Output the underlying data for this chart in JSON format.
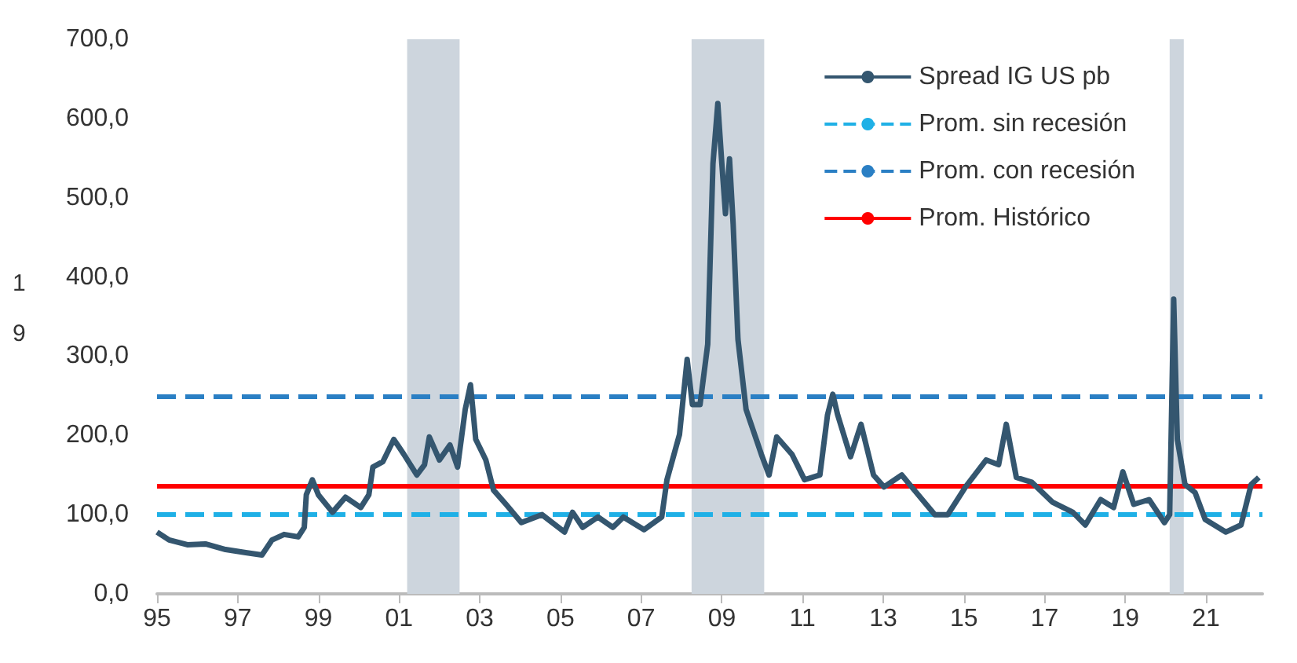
{
  "chart_data": {
    "type": "line",
    "x": [
      1995.0,
      1995.3,
      1995.75,
      1996.2,
      1996.7,
      1997.2,
      1997.6,
      1997.85,
      1998.15,
      1998.5,
      1998.65,
      1998.7,
      1998.85,
      1999.0,
      1999.35,
      1999.67,
      2000.05,
      2000.25,
      2000.35,
      2000.6,
      2000.87,
      2001.12,
      2001.44,
      2001.63,
      2001.75,
      2002.0,
      2002.26,
      2002.45,
      2002.64,
      2002.77,
      2002.9,
      2003.15,
      2003.34,
      2003.65,
      2004.03,
      2004.54,
      2005.1,
      2005.3,
      2005.55,
      2005.93,
      2006.3,
      2006.56,
      2007.07,
      2007.51,
      2007.64,
      2007.95,
      2008.14,
      2008.27,
      2008.46,
      2008.65,
      2008.78,
      2008.9,
      2009.0,
      2009.09,
      2009.19,
      2009.28,
      2009.4,
      2009.6,
      2009.98,
      2010.17,
      2010.36,
      2010.74,
      2011.05,
      2011.43,
      2011.62,
      2011.75,
      2011.87,
      2012.19,
      2012.45,
      2012.76,
      2013.02,
      2013.46,
      2013.77,
      2014.28,
      2014.6,
      2015.04,
      2015.55,
      2015.86,
      2016.05,
      2016.3,
      2016.68,
      2017.19,
      2017.7,
      2018.01,
      2018.39,
      2018.71,
      2018.94,
      2019.21,
      2019.59,
      2019.97,
      2020.1,
      2020.2,
      2020.29,
      2020.48,
      2020.73,
      2020.98,
      2021.49,
      2021.87,
      2022.12,
      2022.31
    ],
    "series": [
      {
        "name": "Spread IG US pb",
        "color": "#34566f",
        "values": [
          78,
          68,
          62,
          63,
          56,
          52,
          49,
          68,
          75,
          72,
          84,
          125,
          144,
          125,
          103,
          122,
          109,
          125,
          160,
          167,
          195,
          176,
          150,
          163,
          198,
          169,
          188,
          160,
          233,
          264,
          195,
          169,
          131,
          113,
          90,
          100,
          78,
          103,
          84,
          97,
          84,
          97,
          81,
          97,
          144,
          201,
          296,
          239,
          239,
          315,
          543,
          619,
          543,
          480,
          549,
          467,
          321,
          233,
          176,
          150,
          198,
          176,
          144,
          150,
          226,
          252,
          226,
          173,
          214,
          150,
          135,
          150,
          131,
          100,
          100,
          135,
          169,
          163,
          214,
          147,
          141,
          116,
          103,
          87,
          119,
          109,
          154,
          113,
          119,
          90,
          100,
          372,
          195,
          138,
          128,
          94,
          78,
          87,
          138,
          147
        ]
      }
    ],
    "xlim": [
      1995,
      2022.4
    ],
    "xticks": [
      {
        "value": 1995,
        "label": "95"
      },
      {
        "value": 1997,
        "label": "97"
      },
      {
        "value": 1999,
        "label": "99"
      },
      {
        "value": 2001,
        "label": "01"
      },
      {
        "value": 2003,
        "label": "03"
      },
      {
        "value": 2005,
        "label": "05"
      },
      {
        "value": 2007,
        "label": "07"
      },
      {
        "value": 2009,
        "label": "09"
      },
      {
        "value": 2011,
        "label": "11"
      },
      {
        "value": 2013,
        "label": "13"
      },
      {
        "value": 2015,
        "label": "15"
      },
      {
        "value": 2017,
        "label": "17"
      },
      {
        "value": 2019,
        "label": "19"
      },
      {
        "value": 2021,
        "label": "21"
      }
    ],
    "ylim": [
      0,
      700
    ],
    "yticks": [
      {
        "value": 0,
        "label": "0,0"
      },
      {
        "value": 100,
        "label": "100,0"
      },
      {
        "value": 200,
        "label": "200,0"
      },
      {
        "value": 300,
        "label": "300,0"
      },
      {
        "value": 400,
        "label": "400,0"
      },
      {
        "value": 500,
        "label": "500,0"
      },
      {
        "value": 600,
        "label": "600,0"
      },
      {
        "value": 700,
        "label": "700,0"
      }
    ],
    "ref_lines": [
      {
        "axis": "y",
        "value": 100,
        "label": "Prom. sin recesión",
        "color": "#1fb0e6",
        "line_style": "dashed"
      },
      {
        "axis": "y",
        "value": 250,
        "label": "Prom. con recesión",
        "color": "#2a7fc4",
        "line_style": "dashed"
      },
      {
        "axis": "y",
        "value": 137,
        "label": "Prom. Histórico",
        "color": "#ff0000",
        "line_style": "solid"
      }
    ],
    "bands": [
      {
        "axis": "x",
        "from": 2001.2,
        "to": 2002.5,
        "color": "#cdd5dd"
      },
      {
        "axis": "x",
        "from": 2008.25,
        "to": 2010.05,
        "color": "#cdd5dd"
      },
      {
        "axis": "x",
        "from": 2020.1,
        "to": 2020.45,
        "color": "#cdd5dd"
      }
    ],
    "annotations": [
      "1",
      "9"
    ],
    "legend": "top right",
    "grid": false,
    "marker": "none",
    "line_style": "solid"
  }
}
